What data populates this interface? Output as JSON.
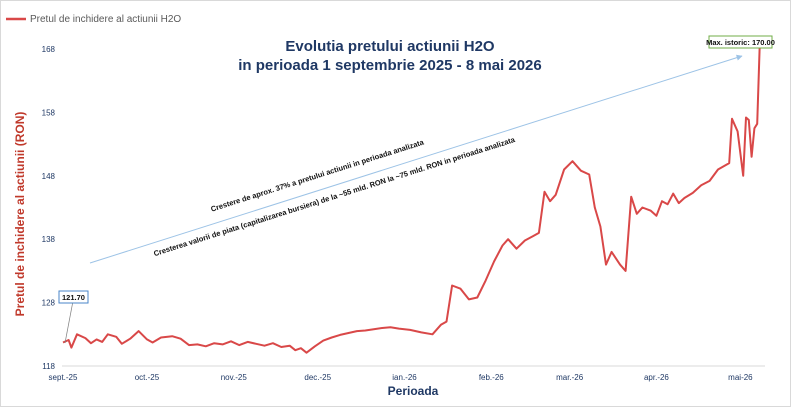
{
  "legend": {
    "label": "Pretul de inchidere al actiunii H2O"
  },
  "title_line1": "Evolutia pretului actiunii H2O",
  "title_line2": "in perioada 1 septembrie 2025 - 8 mai 2026",
  "annotations": {
    "growth": "Crestere de aprox. 37% a pretului actiunii in perioada analizata",
    "market_cap": "Cresterea valorii de piata (capitalizarea bursiera) de la ~55 mld. RON la ~75 mld. RON in perioada analizata",
    "start_value": "121.70",
    "max_value": "Max. istoric: 170.00"
  },
  "colors": {
    "series": "#d94848",
    "trend": "#9dc3e6",
    "title": "#1f3864",
    "ylabel": "#c0392b",
    "max_box": "#70ad47",
    "start_box": "#4a86c8"
  },
  "chart_data": {
    "type": "line",
    "title": "Evolutia pretului actiunii H2O in perioada 1 septembrie 2025 - 8 mai 2026",
    "xlabel": "Perioada",
    "ylabel": "Pretul de inchidere al actiunii (RON)",
    "ylim": [
      118,
      171
    ],
    "grid": false,
    "legend_position": "top-left",
    "x_ticks": [
      "sept.-25",
      "oct.-25",
      "nov.-25",
      "dec.-25",
      "ian.-26",
      "feb.-26",
      "mar.-26",
      "apr.-26",
      "mai-26"
    ],
    "y_ticks": [
      "118",
      "128",
      "138",
      "148",
      "158",
      "168"
    ],
    "y_tick_values": [
      118,
      128,
      138,
      148,
      158,
      168
    ],
    "series": [
      {
        "name": "Pretul de inchidere al actiunii H2O",
        "points": [
          [
            "2025-09-01",
            121.7
          ],
          [
            "2025-09-03",
            122.1
          ],
          [
            "2025-09-04",
            120.9
          ],
          [
            "2025-09-06",
            123.0
          ],
          [
            "2025-09-09",
            122.4
          ],
          [
            "2025-09-11",
            121.6
          ],
          [
            "2025-09-13",
            122.2
          ],
          [
            "2025-09-15",
            121.8
          ],
          [
            "2025-09-17",
            123.0
          ],
          [
            "2025-09-20",
            122.6
          ],
          [
            "2025-09-22",
            121.5
          ],
          [
            "2025-09-25",
            122.3
          ],
          [
            "2025-09-28",
            123.5
          ],
          [
            "2025-10-01",
            122.2
          ],
          [
            "2025-10-03",
            121.7
          ],
          [
            "2025-10-06",
            122.5
          ],
          [
            "2025-10-10",
            122.7
          ],
          [
            "2025-10-13",
            122.3
          ],
          [
            "2025-10-16",
            121.3
          ],
          [
            "2025-10-19",
            121.4
          ],
          [
            "2025-10-22",
            121.1
          ],
          [
            "2025-10-25",
            121.6
          ],
          [
            "2025-10-28",
            121.4
          ],
          [
            "2025-10-31",
            121.9
          ],
          [
            "2025-11-03",
            121.3
          ],
          [
            "2025-11-06",
            121.8
          ],
          [
            "2025-11-09",
            121.5
          ],
          [
            "2025-11-12",
            121.2
          ],
          [
            "2025-11-15",
            121.6
          ],
          [
            "2025-11-18",
            121.0
          ],
          [
            "2025-11-21",
            121.2
          ],
          [
            "2025-11-23",
            120.5
          ],
          [
            "2025-11-25",
            120.8
          ],
          [
            "2025-11-27",
            120.1
          ],
          [
            "2025-11-30",
            121.1
          ],
          [
            "2025-12-03",
            122.0
          ],
          [
            "2025-12-06",
            122.5
          ],
          [
            "2025-12-09",
            122.9
          ],
          [
            "2025-12-12",
            123.2
          ],
          [
            "2025-12-15",
            123.5
          ],
          [
            "2025-12-18",
            123.6
          ],
          [
            "2025-12-21",
            123.8
          ],
          [
            "2025-12-24",
            124.0
          ],
          [
            "2025-12-27",
            124.1
          ],
          [
            "2025-12-30",
            123.9
          ],
          [
            "2026-01-03",
            123.7
          ],
          [
            "2026-01-07",
            123.3
          ],
          [
            "2026-01-11",
            123.0
          ],
          [
            "2026-01-14",
            124.5
          ],
          [
            "2026-01-16",
            125.0
          ],
          [
            "2026-01-18",
            130.7
          ],
          [
            "2026-01-21",
            130.2
          ],
          [
            "2026-01-24",
            128.5
          ],
          [
            "2026-01-27",
            128.8
          ],
          [
            "2026-01-30",
            131.5
          ],
          [
            "2026-02-02",
            134.5
          ],
          [
            "2026-02-05",
            137.0
          ],
          [
            "2026-02-07",
            138.0
          ],
          [
            "2026-02-10",
            136.5
          ],
          [
            "2026-02-13",
            137.8
          ],
          [
            "2026-02-16",
            138.5
          ],
          [
            "2026-02-18",
            139.0
          ],
          [
            "2026-02-20",
            145.5
          ],
          [
            "2026-02-22",
            144.0
          ],
          [
            "2026-02-24",
            145.0
          ],
          [
            "2026-02-27",
            149.0
          ],
          [
            "2026-03-02",
            150.3
          ],
          [
            "2026-03-05",
            148.8
          ],
          [
            "2026-03-08",
            148.2
          ],
          [
            "2026-03-10",
            143.0
          ],
          [
            "2026-03-12",
            140.0
          ],
          [
            "2026-03-14",
            134.0
          ],
          [
            "2026-03-16",
            136.0
          ],
          [
            "2026-03-19",
            134.0
          ],
          [
            "2026-03-21",
            133.0
          ],
          [
            "2026-03-23",
            144.7
          ],
          [
            "2026-03-25",
            142.0
          ],
          [
            "2026-03-27",
            143.0
          ],
          [
            "2026-03-30",
            142.5
          ],
          [
            "2026-04-01",
            141.7
          ],
          [
            "2026-04-03",
            144.0
          ],
          [
            "2026-04-05",
            143.5
          ],
          [
            "2026-04-07",
            145.2
          ],
          [
            "2026-04-09",
            143.7
          ],
          [
            "2026-04-11",
            144.5
          ],
          [
            "2026-04-14",
            145.3
          ],
          [
            "2026-04-17",
            146.5
          ],
          [
            "2026-04-20",
            147.2
          ],
          [
            "2026-04-23",
            149.0
          ],
          [
            "2026-04-27",
            150.0
          ],
          [
            "2026-04-28",
            157.0
          ],
          [
            "2026-04-30",
            155.0
          ],
          [
            "2026-05-02",
            148.0
          ],
          [
            "2026-05-03",
            157.2
          ],
          [
            "2026-05-04",
            156.8
          ],
          [
            "2026-05-05",
            151.0
          ],
          [
            "2026-05-06",
            155.5
          ],
          [
            "2026-05-07",
            156.2
          ],
          [
            "2026-05-08",
            170.0
          ]
        ]
      }
    ]
  }
}
